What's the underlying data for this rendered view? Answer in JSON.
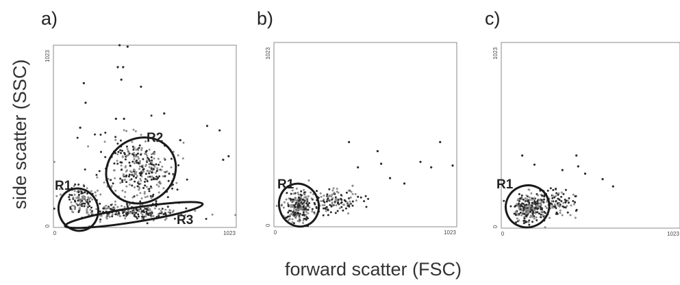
{
  "figure": {
    "ylabel": "side scatter (SSC)",
    "xlabel": "forward scatter (FSC)",
    "colors": {
      "dark_events": "#2b2b2b",
      "light_events": "#8c8c8c",
      "gate_outline": "#1a1a1a",
      "frame": "#8a8a8a"
    }
  },
  "chart_data": [
    {
      "type": "scatter",
      "panel": "a)",
      "xlabel": "forward scatter (FSC)",
      "ylabel": "side scatter (SSC)",
      "xlim": [
        0,
        1023
      ],
      "ylim": [
        0,
        1023
      ],
      "xticks": [
        "0",
        "1023"
      ],
      "yticks": [
        "0",
        "1023"
      ],
      "grid": false,
      "regions": [
        {
          "label": "R1",
          "center": [
            140,
            100
          ],
          "rx": 110,
          "ry": 120
        },
        {
          "label": "R2",
          "center": [
            490,
            320
          ],
          "rx": 200,
          "ry": 180
        },
        {
          "label": "R3",
          "center": [
            450,
            70
          ],
          "rx": 390,
          "ry": 40
        }
      ],
      "clusters": [
        {
          "center": [
            150,
            150
          ],
          "spread": [
            80,
            90
          ],
          "n": 110
        },
        {
          "center": [
            480,
            310
          ],
          "spread": [
            180,
            160
          ],
          "n": 260
        },
        {
          "center": [
            430,
            90
          ],
          "spread": [
            290,
            40
          ],
          "n": 230
        },
        {
          "center": [
            420,
            420
          ],
          "spread": [
            320,
            220
          ],
          "n": 55
        }
      ],
      "outliers": [
        [
          370,
          1030
        ],
        [
          415,
          1015
        ],
        [
          360,
          900
        ],
        [
          390,
          900
        ],
        [
          380,
          830
        ],
        [
          170,
          810
        ],
        [
          490,
          790
        ],
        [
          180,
          700
        ],
        [
          350,
          610
        ],
        [
          395,
          610
        ],
        [
          620,
          640
        ],
        [
          150,
          560
        ],
        [
          860,
          570
        ],
        [
          930,
          545
        ],
        [
          710,
          490
        ],
        [
          950,
          380
        ],
        [
          980,
          400
        ]
      ]
    },
    {
      "type": "scatter",
      "panel": "b)",
      "xlabel": "forward scatter (FSC)",
      "ylabel": "side scatter (SSC)",
      "xlim": [
        0,
        1023
      ],
      "ylim": [
        0,
        1023
      ],
      "xticks": [
        "0",
        "1023"
      ],
      "yticks": [
        "0",
        "1023"
      ],
      "grid": false,
      "regions": [
        {
          "label": "R1",
          "center": [
            140,
            120
          ],
          "rx": 110,
          "ry": 120
        }
      ],
      "clusters": [
        {
          "center": [
            140,
            110
          ],
          "spread": [
            80,
            90
          ],
          "n": 230
        },
        {
          "center": [
            340,
            140
          ],
          "spread": [
            150,
            70
          ],
          "n": 120
        }
      ],
      "outliers": [
        [
          420,
          470
        ],
        [
          580,
          420
        ],
        [
          600,
          350
        ],
        [
          470,
          330
        ],
        [
          820,
          360
        ],
        [
          880,
          330
        ],
        [
          1000,
          340
        ],
        [
          930,
          470
        ],
        [
          650,
          270
        ],
        [
          730,
          240
        ]
      ]
    },
    {
      "type": "scatter",
      "panel": "c)",
      "xlabel": "forward scatter (FSC)",
      "ylabel": "side scatter (SSC)",
      "xlim": [
        0,
        1023
      ],
      "ylim": [
        0,
        1023
      ],
      "xticks": [
        "0",
        "1023"
      ],
      "yticks": [
        "0",
        "1023"
      ],
      "grid": false,
      "regions": [
        {
          "label": "R1",
          "center": [
            150,
            120
          ],
          "rx": 125,
          "ry": 115
        }
      ],
      "clusters": [
        {
          "center": [
            160,
            110
          ],
          "spread": [
            90,
            80
          ],
          "n": 200
        },
        {
          "center": [
            300,
            140
          ],
          "spread": [
            140,
            70
          ],
          "n": 130
        }
      ],
      "outliers": [
        [
          120,
          400
        ],
        [
          190,
          350
        ],
        [
          430,
          400
        ],
        [
          440,
          340
        ],
        [
          580,
          270
        ],
        [
          640,
          230
        ],
        [
          350,
          320
        ],
        [
          480,
          300
        ]
      ]
    }
  ]
}
